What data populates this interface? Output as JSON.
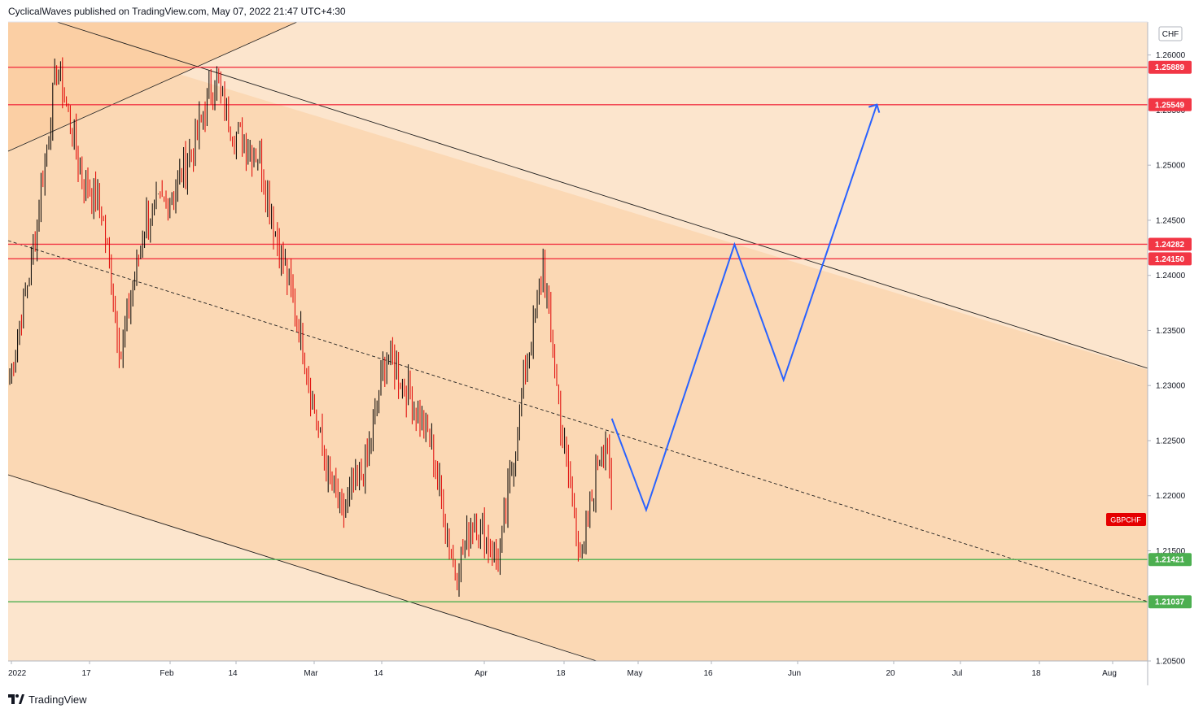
{
  "header": {
    "text": "CyclicalWaves published on TradingView.com, May 07, 2022 21:47 UTC+4:30"
  },
  "footer": {
    "brand": "TradingView"
  },
  "colors": {
    "background_light": "#fce5cd",
    "background_channel": "#fbd8b4",
    "resistance": "#f23645",
    "support": "#4caf50",
    "candle_up": "#000000",
    "candle_down": "#e00000",
    "projection": "#2962ff"
  },
  "chart_data": {
    "type": "line",
    "symbol": "GBPCHF",
    "currency": "CHF",
    "yrange": [
      1.205,
      1.263
    ],
    "y_ticks": [
      "1.26000",
      "1.25500",
      "1.25000",
      "1.24500",
      "1.24000",
      "1.23500",
      "1.23000",
      "1.22500",
      "1.22000",
      "1.21500",
      "1.20500"
    ],
    "x_labels": [
      "2022",
      "17",
      "Feb",
      "14",
      "Mar",
      "14",
      "Apr",
      "18",
      "May",
      "16",
      "Jun",
      "20",
      "Jul",
      "18",
      "Aug"
    ],
    "resistance_levels": [
      {
        "label": "1.25889",
        "value": 1.25889
      },
      {
        "label": "1.25549",
        "value": 1.25549
      },
      {
        "label": "1.24282",
        "value": 1.24282
      },
      {
        "label": "1.24150",
        "value": 1.2415
      }
    ],
    "support_levels": [
      {
        "label": "1.21421",
        "value": 1.21421
      },
      {
        "label": "1.21037",
        "value": 1.21037
      }
    ],
    "projection_path": [
      {
        "date": "2022-05-06",
        "price": 1.227
      },
      {
        "date": "2022-05-13",
        "price": 1.2187
      },
      {
        "date": "2022-05-31",
        "price": 1.2428
      },
      {
        "date": "2022-06-10",
        "price": 1.2305
      },
      {
        "date": "2022-06-29",
        "price": 1.2555
      }
    ],
    "price_path": [
      {
        "date": "2022-01-03",
        "price": 1.23
      },
      {
        "date": "2022-01-08",
        "price": 1.242
      },
      {
        "date": "2022-01-13",
        "price": 1.259
      },
      {
        "date": "2022-01-18",
        "price": 1.249
      },
      {
        "date": "2022-01-22",
        "price": 1.246
      },
      {
        "date": "2022-01-26",
        "price": 1.233
      },
      {
        "date": "2022-01-31",
        "price": 1.245
      },
      {
        "date": "2022-02-05",
        "price": 1.247
      },
      {
        "date": "2022-02-10",
        "price": 1.252
      },
      {
        "date": "2022-02-14",
        "price": 1.258
      },
      {
        "date": "2022-02-18",
        "price": 1.253
      },
      {
        "date": "2022-02-23",
        "price": 1.251
      },
      {
        "date": "2022-02-27",
        "price": 1.243
      },
      {
        "date": "2022-03-03",
        "price": 1.236
      },
      {
        "date": "2022-03-08",
        "price": 1.224
      },
      {
        "date": "2022-03-12",
        "price": 1.218
      },
      {
        "date": "2022-03-17",
        "price": 1.223
      },
      {
        "date": "2022-03-21",
        "price": 1.233
      },
      {
        "date": "2022-03-25",
        "price": 1.23
      },
      {
        "date": "2022-03-30",
        "price": 1.225
      },
      {
        "date": "2022-04-04",
        "price": 1.213
      },
      {
        "date": "2022-04-08",
        "price": 1.218
      },
      {
        "date": "2022-04-13",
        "price": 1.214
      },
      {
        "date": "2022-04-18",
        "price": 1.23
      },
      {
        "date": "2022-04-22",
        "price": 1.241
      },
      {
        "date": "2022-04-26",
        "price": 1.225
      },
      {
        "date": "2022-04-30",
        "price": 1.214
      },
      {
        "date": "2022-05-03",
        "price": 1.223
      },
      {
        "date": "2022-05-05",
        "price": 1.226
      },
      {
        "date": "2022-05-06",
        "price": 1.217
      }
    ]
  }
}
